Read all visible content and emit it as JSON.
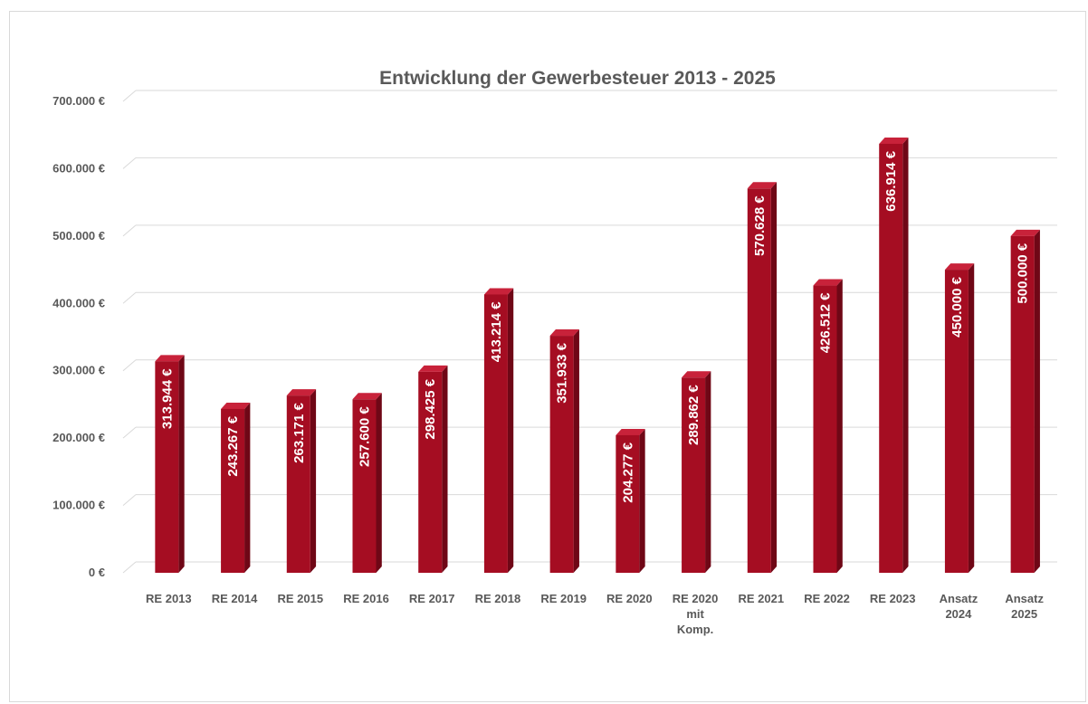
{
  "chart_data": {
    "type": "bar",
    "title": "Entwicklung der Gewerbesteuer  2013 - 2025",
    "xlabel": "",
    "ylabel": "",
    "ylim": [
      0,
      700000
    ],
    "y_ticks": [
      {
        "value": 0,
        "label": "0 €"
      },
      {
        "value": 100000,
        "label": "100.000 €"
      },
      {
        "value": 200000,
        "label": "200.000 €"
      },
      {
        "value": 300000,
        "label": "300.000 €"
      },
      {
        "value": 400000,
        "label": "400.000 €"
      },
      {
        "value": 500000,
        "label": "500.000 €"
      },
      {
        "value": 600000,
        "label": "600.000 €"
      },
      {
        "value": 700000,
        "label": "700.000 €"
      }
    ],
    "grid": true,
    "legend": "none",
    "bar_color": "#a50d22",
    "categories": [
      [
        "RE 2013"
      ],
      [
        "RE 2014"
      ],
      [
        "RE 2015"
      ],
      [
        "RE 2016"
      ],
      [
        "RE 2017"
      ],
      [
        "RE 2018"
      ],
      [
        "RE 2019"
      ],
      [
        "RE 2020"
      ],
      [
        "RE 2020",
        "mit",
        "Komp."
      ],
      [
        "RE 2021"
      ],
      [
        "RE 2022"
      ],
      [
        "RE 2023"
      ],
      [
        "Ansatz",
        "2024"
      ],
      [
        "Ansatz",
        "2025"
      ]
    ],
    "values": [
      313944,
      243267,
      263171,
      257600,
      298425,
      413214,
      351933,
      204277,
      289862,
      570628,
      426512,
      636914,
      450000,
      500000
    ],
    "data_labels": [
      "313.944 €",
      "243.267 €",
      "263.171 €",
      "257.600 €",
      "298.425 €",
      "413.214 €",
      "351.933 €",
      "204.277 €",
      "289.862 €",
      "570.628 €",
      "426.512 €",
      "636.914 €",
      "450.000 €",
      "500.000 €"
    ]
  }
}
